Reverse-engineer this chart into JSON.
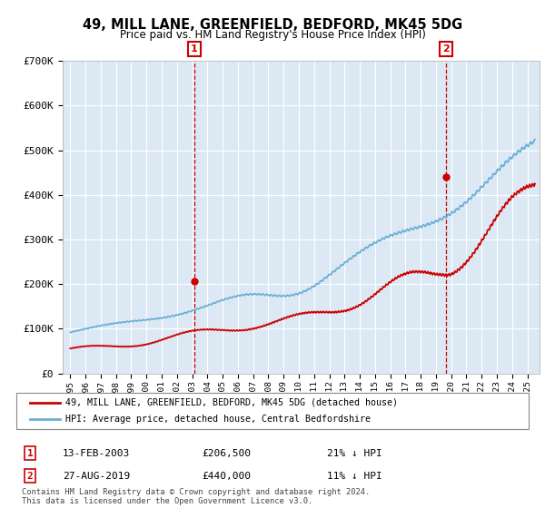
{
  "title": "49, MILL LANE, GREENFIELD, BEDFORD, MK45 5DG",
  "subtitle": "Price paid vs. HM Land Registry's House Price Index (HPI)",
  "ylim": [
    0,
    700000
  ],
  "yticks": [
    0,
    100000,
    200000,
    300000,
    400000,
    500000,
    600000,
    700000
  ],
  "ytick_labels": [
    "£0",
    "£100K",
    "£200K",
    "£300K",
    "£400K",
    "£500K",
    "£600K",
    "£700K"
  ],
  "hpi_color": "#6baed6",
  "price_color": "#cc0000",
  "marker1_year": 2003.12,
  "marker1_price": 206500,
  "marker2_year": 2019.65,
  "marker2_price": 440000,
  "legend_line1": "49, MILL LANE, GREENFIELD, BEDFORD, MK45 5DG (detached house)",
  "legend_line2": "HPI: Average price, detached house, Central Bedfordshire",
  "annot1_label": "1",
  "annot1_date": "13-FEB-2003",
  "annot1_price": "£206,500",
  "annot1_hpi": "21% ↓ HPI",
  "annot2_label": "2",
  "annot2_date": "27-AUG-2019",
  "annot2_price": "£440,000",
  "annot2_hpi": "11% ↓ HPI",
  "footer": "Contains HM Land Registry data © Crown copyright and database right 2024.\nThis data is licensed under the Open Government Licence v3.0.",
  "bg_color": "#ffffff",
  "plot_bg_color": "#dce9f5",
  "grid_color": "#ffffff",
  "title_color": "#000000"
}
